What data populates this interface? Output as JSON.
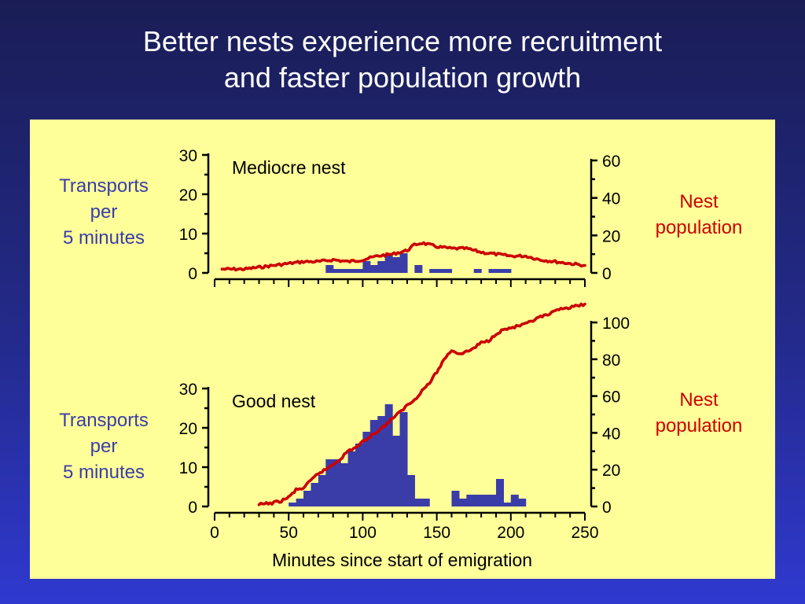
{
  "slide": {
    "title_line1": "Better nests experience more recruitment",
    "title_line2": "and faster population growth"
  },
  "colors": {
    "bars": "#3a3da8",
    "population_line": "#cc0000",
    "panel_bg": "#ffff99"
  },
  "labels": {
    "transports": [
      "Transports",
      "per",
      "5 minutes"
    ],
    "population": [
      "Nest",
      "population"
    ]
  },
  "chart_data": [
    {
      "type": "bar",
      "title": "Mediocre nest",
      "xlabel": "Minutes since start of emigration",
      "ylabel": "Transports per 5 minutes",
      "y2label": "Nest population",
      "xlim": [
        0,
        250
      ],
      "ylim": [
        0,
        30
      ],
      "y2lim": [
        0,
        60
      ],
      "yticks": [
        0,
        10,
        20,
        30
      ],
      "y2ticks": [
        0,
        20,
        40,
        60
      ],
      "series": [
        {
          "name": "Transports per 5 minutes",
          "kind": "bar",
          "axis": "left",
          "bin_width": 5,
          "x": [
            75,
            80,
            85,
            90,
            95,
            100,
            105,
            110,
            115,
            120,
            125,
            130,
            135,
            140,
            145,
            150,
            155,
            160,
            165,
            170,
            175,
            180,
            185,
            190,
            195,
            200
          ],
          "values": [
            2,
            1,
            1,
            1,
            1,
            3,
            2,
            3,
            5,
            4,
            5,
            0,
            2,
            0,
            1,
            1,
            1,
            0,
            0,
            0,
            1,
            0,
            1,
            1,
            1,
            0
          ]
        },
        {
          "name": "Nest population",
          "kind": "line",
          "axis": "right",
          "x": [
            5,
            20,
            40,
            50,
            60,
            70,
            80,
            90,
            100,
            110,
            120,
            130,
            135,
            140,
            150,
            160,
            170,
            180,
            190,
            200,
            210,
            220,
            230,
            240,
            250
          ],
          "y": [
            2,
            2,
            4,
            5,
            6,
            6,
            7,
            6,
            7,
            9,
            10,
            12,
            15,
            16,
            14,
            13,
            13,
            11,
            10,
            9,
            9,
            7,
            6,
            5,
            4
          ]
        }
      ]
    },
    {
      "type": "bar",
      "title": "Good nest",
      "xlabel": "Minutes since start of emigration",
      "ylabel": "Transports per 5 minutes",
      "y2label": "Nest population",
      "xlim": [
        0,
        250
      ],
      "ylim": [
        0,
        30
      ],
      "y2lim": [
        0,
        100
      ],
      "yticks": [
        0,
        10,
        20,
        30
      ],
      "y2ticks": [
        0,
        20,
        40,
        60,
        80,
        100
      ],
      "xticks": [
        0,
        50,
        100,
        150,
        200,
        250
      ],
      "series": [
        {
          "name": "Transports per 5 minutes",
          "kind": "bar",
          "axis": "left",
          "bin_width": 5,
          "x": [
            50,
            55,
            60,
            65,
            70,
            75,
            80,
            85,
            90,
            95,
            100,
            105,
            110,
            115,
            120,
            125,
            130,
            135,
            140,
            145,
            150,
            155,
            160,
            165,
            170,
            175,
            180,
            185,
            190,
            195,
            200,
            205
          ],
          "values": [
            1,
            2,
            4,
            6,
            8,
            12,
            12,
            11,
            14,
            16,
            19,
            22,
            23,
            26,
            18,
            24,
            8,
            2,
            2,
            0,
            0,
            0,
            4,
            2,
            3,
            3,
            3,
            3,
            7,
            1,
            3,
            2
          ]
        },
        {
          "name": "Nest population",
          "kind": "line",
          "axis": "right",
          "x": [
            30,
            40,
            45,
            50,
            55,
            60,
            65,
            70,
            75,
            80,
            85,
            90,
            95,
            100,
            105,
            110,
            115,
            120,
            125,
            130,
            135,
            140,
            145,
            150,
            155,
            160,
            165,
            170,
            175,
            180,
            185,
            190,
            195,
            200,
            205,
            210,
            215,
            220,
            225,
            230,
            235,
            240,
            245,
            250
          ],
          "y": [
            1,
            2,
            3,
            5,
            9,
            10,
            14,
            18,
            20,
            23,
            26,
            30,
            32,
            35,
            38,
            41,
            44,
            48,
            51,
            55,
            58,
            63,
            67,
            73,
            80,
            85,
            83,
            84,
            86,
            89,
            90,
            94,
            96,
            97,
            98,
            99,
            101,
            103,
            104,
            106,
            108,
            108,
            109,
            110
          ]
        }
      ]
    }
  ]
}
